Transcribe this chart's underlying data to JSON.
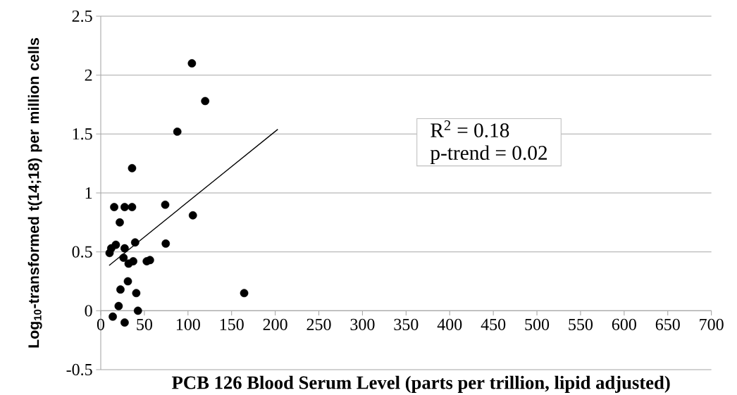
{
  "chart_data": {
    "type": "scatter",
    "xlabel": "PCB 126 Blood Serum Level (parts per trillion, lipid adjusted)",
    "ylabel": "Log$_{10}$-transformed t(14;18) per million cells",
    "grid": "y",
    "xlim": [
      0,
      700
    ],
    "xticks": [
      0,
      50,
      100,
      150,
      200,
      250,
      300,
      350,
      400,
      450,
      500,
      550,
      600,
      650,
      700
    ],
    "ylim": [
      -0.5,
      2.5
    ],
    "yticks": [
      -0.5,
      0,
      0.5,
      1,
      1.5,
      2,
      2.5
    ],
    "series": [
      {
        "marker": "circle",
        "color": "#000000",
        "x": [
          104.5,
          119.7,
          87.8,
          35.9,
          15.4,
          27.4,
          35.9,
          73.9,
          105.6,
          21.8,
          39.4,
          74.5,
          17.3,
          12.0,
          27.4,
          10.1,
          26.1,
          31.9,
          37.2,
          52.7,
          56.4,
          31.1,
          22.6,
          40.7,
          164.4,
          20.5,
          42.6,
          13.8,
          27.4
        ],
        "values": [
          2.1,
          1.78,
          1.52,
          1.21,
          0.88,
          0.88,
          0.88,
          0.9,
          0.81,
          0.75,
          0.58,
          0.57,
          0.56,
          0.53,
          0.53,
          0.49,
          0.45,
          0.4,
          0.42,
          0.42,
          0.43,
          0.25,
          0.18,
          0.15,
          0.15,
          0.04,
          0.0,
          -0.05,
          -0.1
        ]
      },
      {
        "type": "line",
        "color": "#000000",
        "marker": "none",
        "x": [
          9.6,
          203
        ],
        "values": [
          0.385,
          1.54
        ]
      }
    ],
    "annotations": [
      "R$^{2}$ = 0.18",
      "p-trend = 0.02"
    ]
  }
}
